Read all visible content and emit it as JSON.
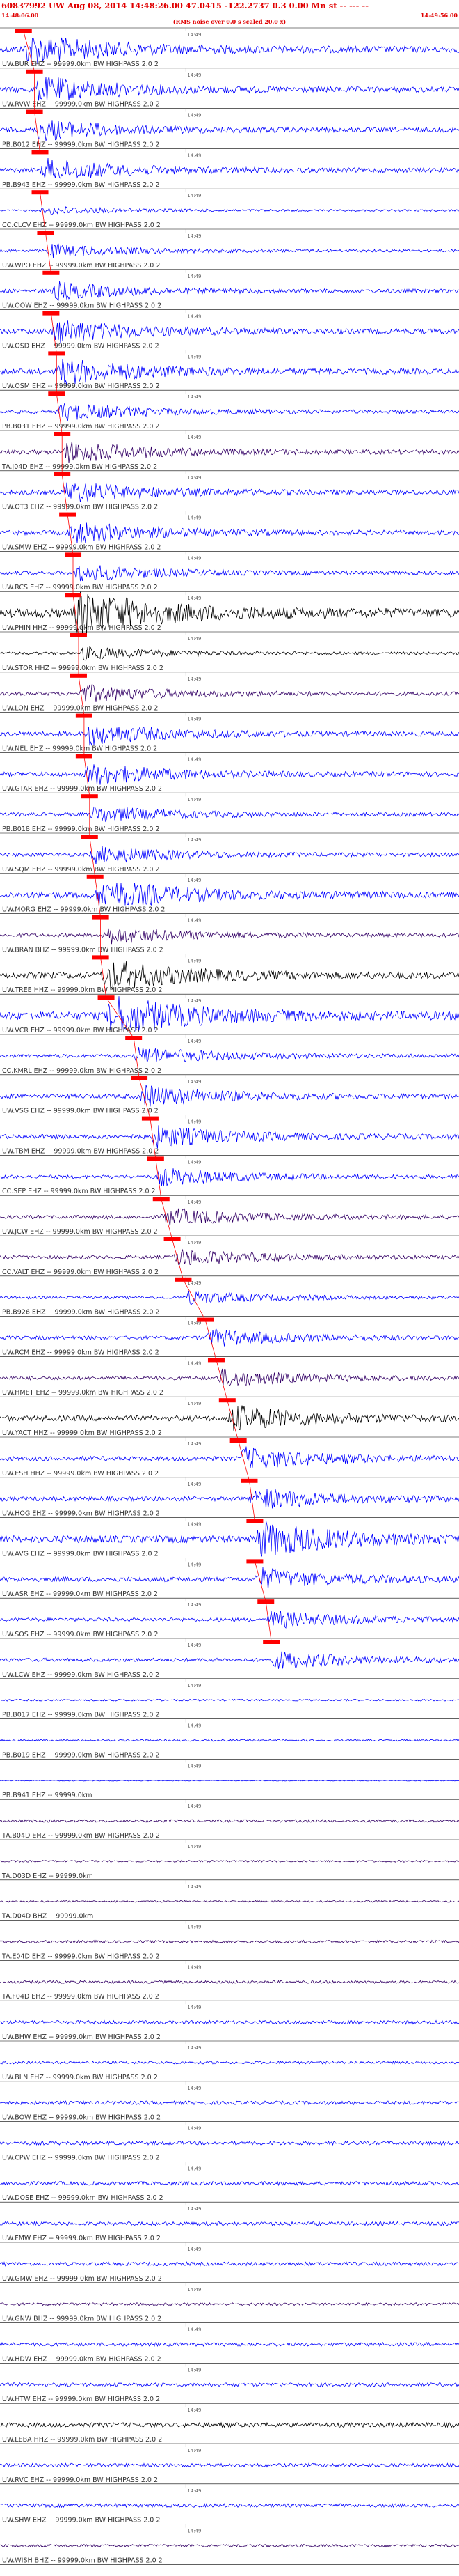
{
  "header": {
    "title": "60837992 UW Aug 08, 2014 14:48:26.00   47.0415 -122.2737  0.3 0.00 Mn st -- --- --",
    "start_time": "14:48:06.00",
    "end_time": "14:49:56.00",
    "note": "(RMS noise over 0.0 s scaled 20.0 x)"
  },
  "chart_data": {
    "type": "seismogram",
    "tick_label": "14:49",
    "colors": {
      "pick": "#ff0000",
      "blue": "#0000ff",
      "black": "#000000",
      "purple": "#330066"
    },
    "traces": [
      {
        "label": "UW.BUR EHZ -- 99999.0km BW HIGHPASS 2.0 2",
        "color": "blue",
        "amp": 0.7,
        "pick": 0.03
      },
      {
        "label": "UW.RVW EHZ -- 99999.0km BW HIGHPASS 2.0 2",
        "color": "blue",
        "amp": 0.6,
        "pick": 0.05
      },
      {
        "label": "PB.B012 EHZ -- 99999.0km BW HIGHPASS 2.0 2",
        "color": "blue",
        "amp": 0.5,
        "pick": 0.05
      },
      {
        "label": "PB.B943 EHZ -- 99999.0km BW HIGHPASS 2.0 2",
        "color": "blue",
        "amp": 0.5,
        "pick": 0.06
      },
      {
        "label": "CC.CLCV EHZ -- 99999.0km BW HIGHPASS 2.0 2",
        "color": "blue",
        "amp": 0.2,
        "pick": 0.06
      },
      {
        "label": "UW.WPO EHZ -- 99999.0km BW HIGHPASS 2.0 2",
        "color": "blue",
        "amp": 0.3,
        "pick": 0.07
      },
      {
        "label": "UW.OOW EHZ -- 99999.0km BW HIGHPASS 2.0 2",
        "color": "blue",
        "amp": 0.4,
        "pick": 0.08
      },
      {
        "label": "UW.OSD EHZ -- 99999.0km BW HIGHPASS 2.0 2",
        "color": "blue",
        "amp": 0.55,
        "pick": 0.08
      },
      {
        "label": "UW.OSM EHZ -- 99999.0km BW HIGHPASS 2.0 2",
        "color": "blue",
        "amp": 0.6,
        "pick": 0.09
      },
      {
        "label": "PB.B031 EHZ -- 99999.0km BW HIGHPASS 2.0 2",
        "color": "blue",
        "amp": 0.4,
        "pick": 0.09
      },
      {
        "label": "TA.J04D EHZ -- 99999.0km BW HIGHPASS 2.0 2",
        "color": "purple",
        "amp": 0.5,
        "pick": 0.1
      },
      {
        "label": "UW.OT3 EHZ -- 99999.0km BW HIGHPASS 2.0 2",
        "color": "blue",
        "amp": 0.5,
        "pick": 0.1
      },
      {
        "label": "UW.SMW EHZ -- 99999.0km BW HIGHPASS 2.0 2",
        "color": "blue",
        "amp": 0.5,
        "pick": 0.11
      },
      {
        "label": "UW.RCS EHZ -- 99999.0km BW HIGHPASS 2.0 2",
        "color": "blue",
        "amp": 0.4,
        "pick": 0.12
      },
      {
        "label": "UW.PHIN HHZ -- 99999.0km BW HIGHPASS 2.0 2",
        "color": "black",
        "amp": 1.0,
        "pick": 0.12
      },
      {
        "label": "UW.STOR HHZ -- 99999.0km BW HIGHPASS 2.0 2",
        "color": "black",
        "amp": 0.3,
        "pick": 0.13
      },
      {
        "label": "UW.LON EHZ -- 99999.0km BW HIGHPASS 2.0 2",
        "color": "purple",
        "amp": 0.4,
        "pick": 0.13
      },
      {
        "label": "UW.NEL EHZ -- 99999.0km BW HIGHPASS 2.0 2",
        "color": "blue",
        "amp": 0.5,
        "pick": 0.14
      },
      {
        "label": "UW.GTAR EHZ -- 99999.0km BW HIGHPASS 2.0 2",
        "color": "blue",
        "amp": 0.5,
        "pick": 0.14
      },
      {
        "label": "PB.B018 EHZ -- 99999.0km BW HIGHPASS 2.0 2",
        "color": "blue",
        "amp": 0.4,
        "pick": 0.15
      },
      {
        "label": "UW.SQM EHZ -- 99999.0km BW HIGHPASS 2.0 2",
        "color": "blue",
        "amp": 0.4,
        "pick": 0.15
      },
      {
        "label": "UW.MORG EHZ -- 99999.0km BW HIGHPASS 2.0 2",
        "color": "blue",
        "amp": 0.7,
        "pick": 0.16
      },
      {
        "label": "UW.BRAN BHZ -- 99999.0km BW HIGHPASS 2.0 2",
        "color": "purple",
        "amp": 0.4,
        "pick": 0.17
      },
      {
        "label": "UW.TREE HHZ -- 99999.0km BW HIGHPASS 2.0 2",
        "color": "black",
        "amp": 0.7,
        "pick": 0.17
      },
      {
        "label": "UW.VCR EHZ -- 99999.0km BW HIGHPASS 2.0 2",
        "color": "blue",
        "amp": 0.9,
        "pick": 0.18
      },
      {
        "label": "CC.KMRL EHZ -- 99999.0km BW HIGHPASS 2.0 2",
        "color": "blue",
        "amp": 0.4,
        "pick": 0.23
      },
      {
        "label": "UW.VSG EHZ -- 99999.0km BW HIGHPASS 2.0 2",
        "color": "blue",
        "amp": 0.5,
        "pick": 0.24
      },
      {
        "label": "UW.TBM EHZ -- 99999.0km BW HIGHPASS 2.0 2",
        "color": "blue",
        "amp": 0.5,
        "pick": 0.26
      },
      {
        "label": "CC.SEP EHZ -- 99999.0km BW HIGHPASS 2.0 2",
        "color": "blue",
        "amp": 0.4,
        "pick": 0.27
      },
      {
        "label": "UW.JCW EHZ -- 99999.0km BW HIGHPASS 2.0 2",
        "color": "purple",
        "amp": 0.4,
        "pick": 0.28
      },
      {
        "label": "CC.VALT EHZ -- 99999.0km BW HIGHPASS 2.0 2",
        "color": "purple",
        "amp": 0.4,
        "pick": 0.3
      },
      {
        "label": "PB.B926 EHZ -- 99999.0km BW HIGHPASS 2.0 2",
        "color": "blue",
        "amp": 0.3,
        "pick": 0.32
      },
      {
        "label": "UW.RCM EHZ -- 99999.0km BW HIGHPASS 2.0 2",
        "color": "blue",
        "amp": 0.4,
        "pick": 0.36
      },
      {
        "label": "UW.HMET EHZ -- 99999.0km BW HIGHPASS 2.0 2",
        "color": "purple",
        "amp": 0.4,
        "pick": 0.38
      },
      {
        "label": "UW.YACT HHZ -- 99999.0km BW HIGHPASS 2.0 2",
        "color": "black",
        "amp": 0.6,
        "pick": 0.4
      },
      {
        "label": "UW.ESH HHZ -- 99999.0km BW HIGHPASS 2.0 2",
        "color": "blue",
        "amp": 0.5,
        "pick": 0.42
      },
      {
        "label": "UW.HOG EHZ -- 99999.0km BW HIGHPASS 2.0 2",
        "color": "blue",
        "amp": 0.5,
        "pick": 0.44
      },
      {
        "label": "UW.AVG EHZ -- 99999.0km BW HIGHPASS 2.0 2",
        "color": "blue",
        "amp": 0.8,
        "pick": 0.45
      },
      {
        "label": "UW.ASR EHZ -- 99999.0km BW HIGHPASS 2.0 2",
        "color": "blue",
        "amp": 0.5,
        "pick": 0.45
      },
      {
        "label": "UW.SOS EHZ -- 99999.0km BW HIGHPASS 2.0 2",
        "color": "blue",
        "amp": 0.4,
        "pick": 0.47
      },
      {
        "label": "UW.LCW EHZ -- 99999.0km BW HIGHPASS 2.0 2",
        "color": "blue",
        "amp": 0.4,
        "pick": 0.48
      },
      {
        "label": "PB.B017 EHZ -- 99999.0km BW HIGHPASS 2.0 2",
        "color": "blue",
        "amp": 0.2,
        "pick": null
      },
      {
        "label": "PB.B019 EHZ -- 99999.0km BW HIGHPASS 2.0 2",
        "color": "blue",
        "amp": 0.2,
        "pick": null
      },
      {
        "label": "PB.B941 EHZ -- 99999.0km",
        "color": "blue",
        "amp": 0.1,
        "pick": null
      },
      {
        "label": "TA.B04D EHZ -- 99999.0km BW HIGHPASS 2.0 2",
        "color": "purple",
        "amp": 0.3,
        "pick": null
      },
      {
        "label": "TA.D03D EHZ -- 99999.0km",
        "color": "purple",
        "amp": 0.2,
        "pick": null
      },
      {
        "label": "TA.D04D BHZ -- 99999.0km",
        "color": "purple",
        "amp": 0.2,
        "pick": null
      },
      {
        "label": "TA.E04D EHZ -- 99999.0km BW HIGHPASS 2.0 2",
        "color": "purple",
        "amp": 0.3,
        "pick": null
      },
      {
        "label": "TA.F04D EHZ -- 99999.0km BW HIGHPASS 2.0 2",
        "color": "purple",
        "amp": 0.3,
        "pick": null
      },
      {
        "label": "UW.BHW EHZ -- 99999.0km BW HIGHPASS 2.0 2",
        "color": "blue",
        "amp": 0.4,
        "pick": null
      },
      {
        "label": "UW.BLN EHZ -- 99999.0km BW HIGHPASS 2.0 2",
        "color": "blue",
        "amp": 0.3,
        "pick": null
      },
      {
        "label": "UW.BOW EHZ -- 99999.0km BW HIGHPASS 2.0 2",
        "color": "blue",
        "amp": 0.4,
        "pick": null
      },
      {
        "label": "UW.CPW EHZ -- 99999.0km BW HIGHPASS 2.0 2",
        "color": "blue",
        "amp": 0.4,
        "pick": null
      },
      {
        "label": "UW.DOSE EHZ -- 99999.0km BW HIGHPASS 2.0 2",
        "color": "blue",
        "amp": 0.4,
        "pick": null
      },
      {
        "label": "UW.FMW EHZ -- 99999.0km BW HIGHPASS 2.0 2",
        "color": "blue",
        "amp": 0.4,
        "pick": null
      },
      {
        "label": "UW.GMW EHZ -- 99999.0km BW HIGHPASS 2.0 2",
        "color": "blue",
        "amp": 0.4,
        "pick": null
      },
      {
        "label": "UW.GNW BHZ -- 99999.0km BW HIGHPASS 2.0 2",
        "color": "purple",
        "amp": 0.3,
        "pick": null
      },
      {
        "label": "UW.HDW EHZ -- 99999.0km BW HIGHPASS 2.0 2",
        "color": "blue",
        "amp": 0.4,
        "pick": null
      },
      {
        "label": "UW.HTW EHZ -- 99999.0km BW HIGHPASS 2.0 2",
        "color": "blue",
        "amp": 0.4,
        "pick": null
      },
      {
        "label": "UW.LEBA HHZ -- 99999.0km BW HIGHPASS 2.0 2",
        "color": "black",
        "amp": 0.5,
        "pick": null
      },
      {
        "label": "UW.RVC EHZ -- 99999.0km BW HIGHPASS 2.0 2",
        "color": "blue",
        "amp": 0.4,
        "pick": null
      },
      {
        "label": "UW.SHW EHZ -- 99999.0km BW HIGHPASS 2.0 2",
        "color": "blue",
        "amp": 0.4,
        "pick": null
      },
      {
        "label": "UW.WISH BHZ -- 99999.0km BW HIGHPASS 2.0 2",
        "color": "purple",
        "amp": 0.3,
        "pick": null
      }
    ]
  }
}
